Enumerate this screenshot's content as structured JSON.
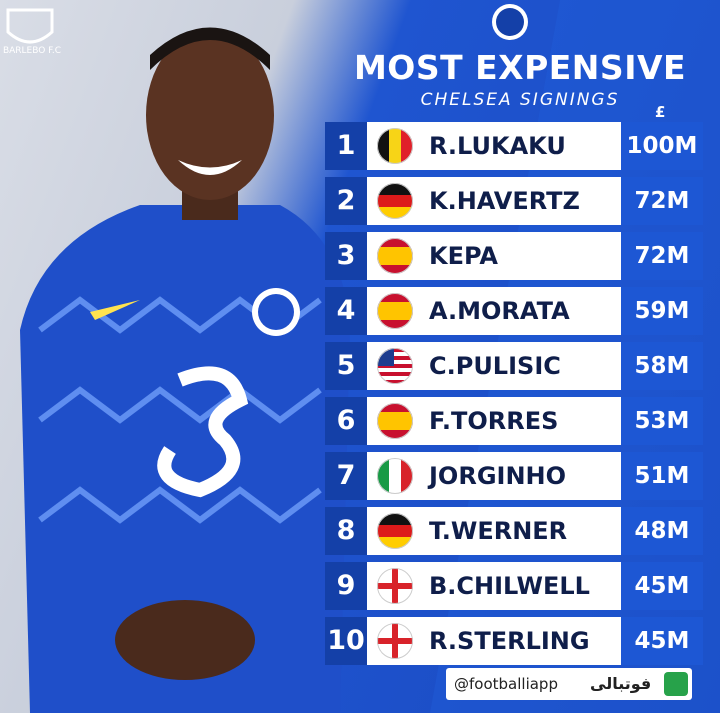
{
  "header": {
    "badge": "BARLEBO F.C",
    "title": "MOST EXPENSIVE",
    "subtitle": "CHELSEA SIGNINGS",
    "currency": "£"
  },
  "rows": [
    {
      "rank": 1,
      "name": "R.LUKAKU",
      "fee": "100M"
    },
    {
      "rank": 2,
      "name": "K.HAVERTZ",
      "fee": "72M"
    },
    {
      "rank": 3,
      "name": "KEPA",
      "fee": "72M"
    },
    {
      "rank": 4,
      "name": "A.MORATA",
      "fee": "59M"
    },
    {
      "rank": 5,
      "name": "C.PULISIC",
      "fee": "58M"
    },
    {
      "rank": 6,
      "name": "F.TORRES",
      "fee": "53M"
    },
    {
      "rank": 7,
      "name": "JORGINHO",
      "fee": "51M"
    },
    {
      "rank": 8,
      "name": "T.WERNER",
      "fee": "48M"
    },
    {
      "rank": 9,
      "name": "B.CHILWELL",
      "fee": "45M"
    },
    {
      "rank": 10,
      "name": "R.STERLING",
      "fee": "45M"
    }
  ],
  "footer": {
    "handle": "@footballiapp",
    "brand": "فوتبالی"
  }
}
